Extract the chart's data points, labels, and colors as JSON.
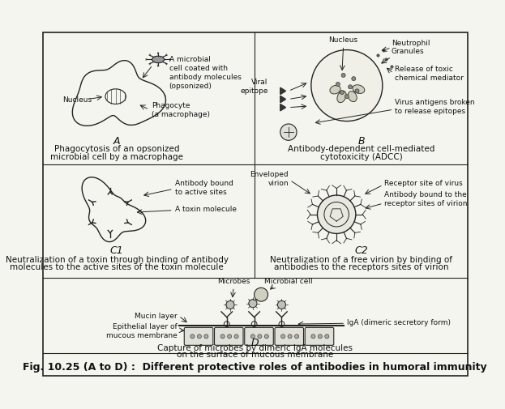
{
  "background_color": "#f5f5f0",
  "border_color": "#333333",
  "figure_caption": "Fig. 10.25 (A to D) :  Different protective roles of antibodies in humoral immunity",
  "caption_fontsize": 9,
  "panel_A": {
    "label": "A",
    "caption_line1": "Phagocytosis of an opsonized",
    "caption_line2": "microbial cell by a macrophage",
    "nucleus_label": "Nucleus",
    "phagocyte_label": "Phagocyte\n(a macrophage)",
    "microbial_label": "A microbial\ncell coated with\nantibody molecules\n(opsonized)"
  },
  "panel_B": {
    "label": "B",
    "caption_line1": "Antibody-dependent cell-mediated",
    "caption_line2": "cytotoxicity (ADCC)",
    "nucleus_label": "Nucleus",
    "neutrophil_label": "Neutrophil",
    "granules_label": "Granules",
    "viral_epitope_label": "Viral\nepitope",
    "release_label": "Release of toxic\nchemical mediator",
    "virus_antigens_label": "Virus antigens broken\nto release epitopes"
  },
  "panel_C1": {
    "label": "C1",
    "caption_line1": "Neutralization of a toxin through binding of antibody",
    "caption_line2": "molecules to the active sites of the toxin molecule",
    "antibody_label": "Antibody bound\nto active sites",
    "toxin_label": "A toxin molecule"
  },
  "panel_C2": {
    "label": "C2",
    "caption_line1": "Neutralization of a free virion by binding of",
    "caption_line2": "antibodies to the receptors sites of virion",
    "enveloped_label": "Enveloped\nvirion",
    "receptor_label": "Receptor site of virus",
    "antibody_bound_label": "Antibody bound to the\nreceptor sites of virion"
  },
  "panel_D": {
    "label": "D",
    "caption_line1": "Capture of microbes by dimeric IgA molecules",
    "caption_line2": "on the surface of mucous membrane",
    "microbes_label": "Microbes",
    "microbial_cell_label": "Microbial cell",
    "mucin_label": "Mucin layer",
    "epithelial_label": "Epithelial layer of\nmucous membrane",
    "iga_label": "IgA (dimeric secretory form)"
  },
  "text_color": "#111111",
  "line_color": "#222222",
  "fontsize_labels": 7,
  "fontsize_captions": 7.5,
  "fontsize_panel_label": 9
}
